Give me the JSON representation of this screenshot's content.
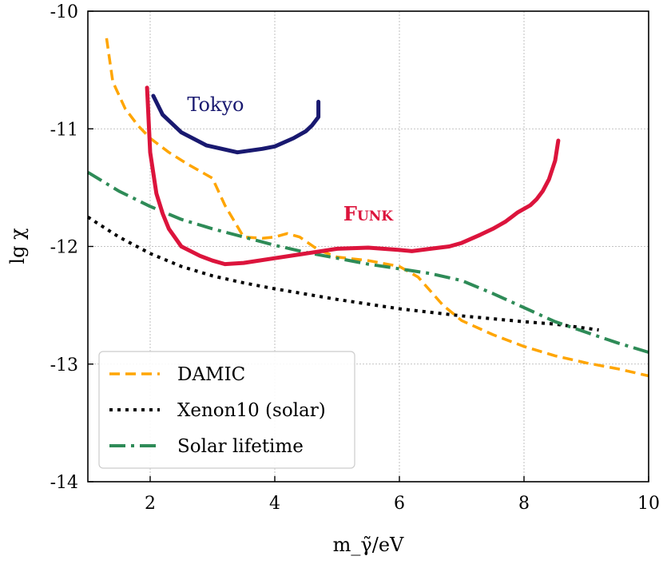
{
  "chart_data": {
    "type": "line",
    "title": "",
    "xlabel": "m_γ̃/eV",
    "ylabel": "lg χ",
    "xlim": [
      1,
      10
    ],
    "ylim": [
      -14,
      -10
    ],
    "grid": true,
    "xticks": [
      2,
      4,
      6,
      8,
      10
    ],
    "yticks": [
      -14,
      -13,
      -12,
      -11,
      -10
    ],
    "x_tick_labels": [
      "2",
      "4",
      "6",
      "8",
      "10"
    ],
    "y_tick_labels": [
      "-14",
      "-13",
      "-12",
      "-11",
      "-10"
    ],
    "legend_position": "lower-left",
    "series": [
      {
        "name": "DAMIC",
        "color": "#ffa500",
        "style": "dashed",
        "in_legend": true,
        "x": [
          1.3,
          1.4,
          1.6,
          1.8,
          2.0,
          2.3,
          2.6,
          3.0,
          3.2,
          3.5,
          3.8,
          4.0,
          4.2,
          4.4,
          4.7,
          5.0,
          5.5,
          6.0,
          6.3,
          6.7,
          7.0,
          7.5,
          8.0,
          8.5,
          9.0,
          9.5,
          10.0
        ],
        "y": [
          -10.23,
          -10.6,
          -10.83,
          -10.97,
          -11.08,
          -11.2,
          -11.3,
          -11.42,
          -11.65,
          -11.92,
          -11.93,
          -11.92,
          -11.89,
          -11.92,
          -12.03,
          -12.09,
          -12.12,
          -12.17,
          -12.26,
          -12.5,
          -12.63,
          -12.75,
          -12.85,
          -12.93,
          -12.99,
          -13.04,
          -13.1
        ]
      },
      {
        "name": "Xenon10 (solar)",
        "color": "#000000",
        "style": "dotted",
        "in_legend": true,
        "x": [
          1.0,
          1.5,
          2.0,
          2.5,
          3.0,
          3.5,
          4.0,
          5.0,
          6.0,
          7.0,
          8.0,
          8.5,
          9.2
        ],
        "y": [
          -11.75,
          -11.92,
          -12.06,
          -12.17,
          -12.25,
          -12.31,
          -12.36,
          -12.45,
          -12.53,
          -12.59,
          -12.64,
          -12.66,
          -12.71
        ]
      },
      {
        "name": "Solar lifetime",
        "color": "#2e8b57",
        "style": "dashdot",
        "in_legend": true,
        "x": [
          1.0,
          1.5,
          2.0,
          2.5,
          3.0,
          3.5,
          4.0,
          4.5,
          5.0,
          5.5,
          6.0,
          6.5,
          7.0,
          7.5,
          8.0,
          8.5,
          9.0,
          9.5,
          10.0
        ],
        "y": [
          -11.37,
          -11.53,
          -11.66,
          -11.77,
          -11.85,
          -11.92,
          -11.99,
          -12.05,
          -12.1,
          -12.15,
          -12.19,
          -12.23,
          -12.29,
          -12.4,
          -12.52,
          -12.64,
          -12.73,
          -12.82,
          -12.9
        ]
      },
      {
        "name": "Funk",
        "color": "#dc143c",
        "style": "solid",
        "in_legend": false,
        "x": [
          1.95,
          2.0,
          2.1,
          2.2,
          2.3,
          2.5,
          2.8,
          3.0,
          3.2,
          3.5,
          4.0,
          4.5,
          5.0,
          5.5,
          6.0,
          6.2,
          6.5,
          6.8,
          7.0,
          7.3,
          7.5,
          7.6,
          7.7,
          7.8,
          7.9,
          8.0,
          8.1,
          8.2,
          8.3,
          8.4,
          8.5,
          8.55
        ],
        "y": [
          -10.65,
          -11.2,
          -11.55,
          -11.72,
          -11.85,
          -12.0,
          -12.08,
          -12.12,
          -12.15,
          -12.14,
          -12.1,
          -12.06,
          -12.02,
          -12.01,
          -12.03,
          -12.04,
          -12.02,
          -12.0,
          -11.97,
          -11.9,
          -11.85,
          -11.82,
          -11.79,
          -11.75,
          -11.71,
          -11.68,
          -11.65,
          -11.6,
          -11.53,
          -11.43,
          -11.27,
          -11.1
        ]
      },
      {
        "name": "Tokyo",
        "color": "#191970",
        "style": "solid",
        "in_legend": false,
        "x": [
          2.05,
          2.2,
          2.5,
          2.9,
          3.4,
          3.8,
          4.0,
          4.3,
          4.5,
          4.6,
          4.7,
          4.7
        ],
        "y": [
          -10.72,
          -10.88,
          -11.03,
          -11.14,
          -11.2,
          -11.17,
          -11.15,
          -11.08,
          -11.02,
          -10.97,
          -10.9,
          -10.77
        ]
      }
    ],
    "annotations": [
      {
        "text": "Tokyo",
        "x": 3.05,
        "y": -10.85,
        "color": "#191970",
        "caps": false
      },
      {
        "text": "Funk",
        "x": 5.5,
        "y": -11.78,
        "color": "#dc143c",
        "caps": true
      }
    ]
  }
}
